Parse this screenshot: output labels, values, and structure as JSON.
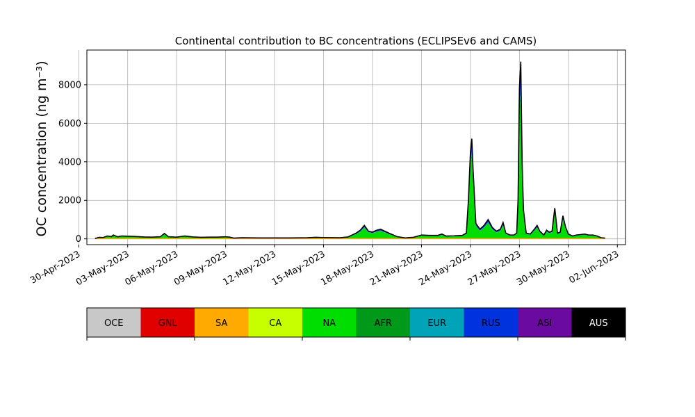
{
  "chart_data": {
    "type": "area",
    "stacked": true,
    "title": "Continental contribution to BC concentrations (ECLIPSEv6 and CAMS)",
    "xlabel": "",
    "ylabel": "OC concentration (ng m⁻³)",
    "xlim": [
      "2023-04-30T12:00",
      "2023-06-02T12:00"
    ],
    "ylim": [
      -300,
      9800
    ],
    "grid": true,
    "x_ticks": [
      "2023-04-30",
      "2023-05-03",
      "2023-05-06",
      "2023-05-09",
      "2023-05-12",
      "2023-05-15",
      "2023-05-18",
      "2023-05-21",
      "2023-05-24",
      "2023-05-27",
      "2023-05-30",
      "2023-06-02"
    ],
    "x_tick_labels": [
      "30-Apr-2023",
      "03-May-2023",
      "06-May-2023",
      "09-May-2023",
      "12-May-2023",
      "15-May-2023",
      "18-May-2023",
      "21-May-2023",
      "24-May-2023",
      "27-May-2023",
      "30-May-2023",
      "02-Jun-2023"
    ],
    "y_ticks": [
      0,
      2000,
      4000,
      6000,
      8000
    ],
    "y_tick_labels": [
      "0",
      "2000",
      "4000",
      "6000",
      "8000"
    ],
    "legend_position": "bottom",
    "series_colors": {
      "OCE": "#c8c8c8",
      "GNL": "#e00000",
      "SA": "#ffaa00",
      "CA": "#c8ff00",
      "NA": "#00dd00",
      "AFR": "#00991a",
      "EUR": "#00a3b8",
      "RUS": "#0033dd",
      "ASI": "#6a0aa0",
      "AUS": "#000000"
    },
    "series_order": [
      "OCE",
      "GNL",
      "SA",
      "CA",
      "NA",
      "AFR",
      "EUR",
      "RUS",
      "ASI",
      "AUS"
    ],
    "total_curve": [
      [
        "2023-05-01T00:00",
        20
      ],
      [
        "2023-05-01T06:00",
        80
      ],
      [
        "2023-05-01T12:00",
        70
      ],
      [
        "2023-05-01T18:00",
        150
      ],
      [
        "2023-05-02T00:00",
        120
      ],
      [
        "2023-05-02T03:00",
        200
      ],
      [
        "2023-05-02T09:00",
        110
      ],
      [
        "2023-05-02T15:00",
        150
      ],
      [
        "2023-05-03T00:00",
        140
      ],
      [
        "2023-05-03T12:00",
        120
      ],
      [
        "2023-05-04T00:00",
        100
      ],
      [
        "2023-05-04T12:00",
        90
      ],
      [
        "2023-05-05T00:00",
        110
      ],
      [
        "2023-05-05T06:00",
        280
      ],
      [
        "2023-05-05T12:00",
        110
      ],
      [
        "2023-05-06T00:00",
        90
      ],
      [
        "2023-05-06T12:00",
        150
      ],
      [
        "2023-05-07T00:00",
        100
      ],
      [
        "2023-05-07T12:00",
        80
      ],
      [
        "2023-05-08T00:00",
        90
      ],
      [
        "2023-05-08T12:00",
        90
      ],
      [
        "2023-05-09T00:00",
        110
      ],
      [
        "2023-05-09T06:00",
        90
      ],
      [
        "2023-05-09T12:00",
        40
      ],
      [
        "2023-05-10T00:00",
        60
      ],
      [
        "2023-05-11T00:00",
        50
      ],
      [
        "2023-05-12T00:00",
        50
      ],
      [
        "2023-05-13T00:00",
        50
      ],
      [
        "2023-05-14T00:00",
        60
      ],
      [
        "2023-05-14T12:00",
        80
      ],
      [
        "2023-05-15T00:00",
        70
      ],
      [
        "2023-05-16T00:00",
        60
      ],
      [
        "2023-05-16T12:00",
        100
      ],
      [
        "2023-05-17T00:00",
        300
      ],
      [
        "2023-05-17T06:00",
        450
      ],
      [
        "2023-05-17T12:00",
        700
      ],
      [
        "2023-05-17T18:00",
        400
      ],
      [
        "2023-05-18T00:00",
        350
      ],
      [
        "2023-05-18T06:00",
        450
      ],
      [
        "2023-05-18T12:00",
        500
      ],
      [
        "2023-05-19T00:00",
        300
      ],
      [
        "2023-05-19T12:00",
        120
      ],
      [
        "2023-05-20T00:00",
        50
      ],
      [
        "2023-05-20T12:00",
        80
      ],
      [
        "2023-05-21T00:00",
        200
      ],
      [
        "2023-05-21T12:00",
        180
      ],
      [
        "2023-05-22T00:00",
        180
      ],
      [
        "2023-05-22T06:00",
        250
      ],
      [
        "2023-05-22T12:00",
        150
      ],
      [
        "2023-05-23T00:00",
        160
      ],
      [
        "2023-05-23T12:00",
        180
      ],
      [
        "2023-05-23T18:00",
        300
      ],
      [
        "2023-05-23T21:00",
        2000
      ],
      [
        "2023-05-24T00:00",
        4500
      ],
      [
        "2023-05-24T02:00",
        5200
      ],
      [
        "2023-05-24T04:00",
        3500
      ],
      [
        "2023-05-24T08:00",
        800
      ],
      [
        "2023-05-24T14:00",
        500
      ],
      [
        "2023-05-24T20:00",
        700
      ],
      [
        "2023-05-25T02:00",
        1000
      ],
      [
        "2023-05-25T08:00",
        600
      ],
      [
        "2023-05-25T14:00",
        400
      ],
      [
        "2023-05-25T20:00",
        500
      ],
      [
        "2023-05-26T00:00",
        850
      ],
      [
        "2023-05-26T04:00",
        300
      ],
      [
        "2023-05-26T10:00",
        200
      ],
      [
        "2023-05-26T16:00",
        200
      ],
      [
        "2023-05-26T20:00",
        300
      ],
      [
        "2023-05-26T22:00",
        2000
      ],
      [
        "2023-05-27T00:00",
        7800
      ],
      [
        "2023-05-27T02:00",
        9200
      ],
      [
        "2023-05-27T04:00",
        4000
      ],
      [
        "2023-05-27T06:00",
        1500
      ],
      [
        "2023-05-27T10:00",
        300
      ],
      [
        "2023-05-27T16:00",
        250
      ],
      [
        "2023-05-27T22:00",
        500
      ],
      [
        "2023-05-28T02:00",
        700
      ],
      [
        "2023-05-28T06:00",
        400
      ],
      [
        "2023-05-28T12:00",
        200
      ],
      [
        "2023-05-28T16:00",
        450
      ],
      [
        "2023-05-28T20:00",
        350
      ],
      [
        "2023-05-29T00:00",
        400
      ],
      [
        "2023-05-29T04:00",
        1600
      ],
      [
        "2023-05-29T08:00",
        300
      ],
      [
        "2023-05-29T12:00",
        350
      ],
      [
        "2023-05-29T16:00",
        1200
      ],
      [
        "2023-05-29T20:00",
        600
      ],
      [
        "2023-05-30T00:00",
        250
      ],
      [
        "2023-05-30T06:00",
        150
      ],
      [
        "2023-05-30T12:00",
        200
      ],
      [
        "2023-05-31T00:00",
        250
      ],
      [
        "2023-05-31T06:00",
        200
      ],
      [
        "2023-05-31T12:00",
        200
      ],
      [
        "2023-05-31T18:00",
        150
      ],
      [
        "2023-06-01T00:00",
        60
      ],
      [
        "2023-06-01T06:00",
        40
      ]
    ],
    "fractions": {
      "NA": 0.8,
      "AFR": 0.03,
      "EUR": 0.04,
      "RUS": 0.11,
      "ASI": 0.02
    }
  }
}
